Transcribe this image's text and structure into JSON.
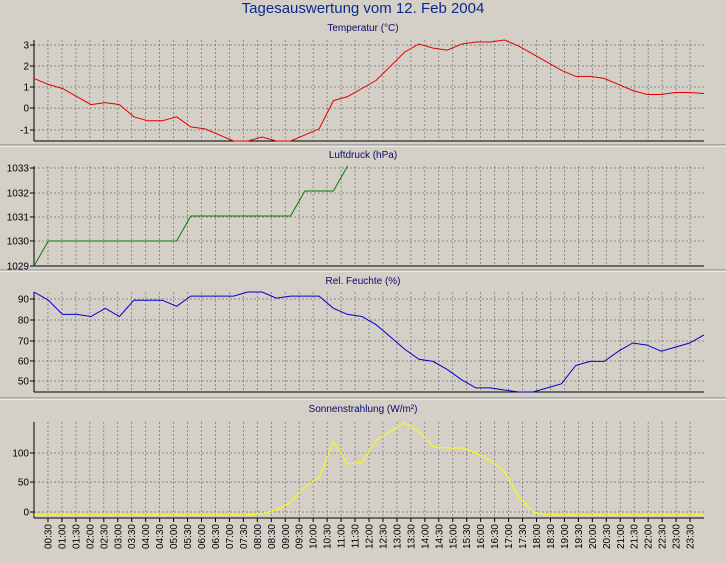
{
  "page_title": "Tagesauswertung vom 12. Feb 2004",
  "colors": {
    "temperature": "#e00000",
    "pressure": "#008000",
    "humidity": "#0000cc",
    "radiation": "#ffff00",
    "background": "#d4d0c8",
    "grid": "#707070"
  },
  "x_ticks": [
    "00:30",
    "01:00",
    "01:30",
    "02:00",
    "02:30",
    "03:00",
    "03:30",
    "04:00",
    "04:30",
    "05:00",
    "05:30",
    "06:00",
    "06:30",
    "07:00",
    "07:30",
    "08:00",
    "08:30",
    "09:00",
    "09:30",
    "10:00",
    "10:30",
    "11:00",
    "11:30",
    "12:00",
    "12:30",
    "13:00",
    "13:30",
    "14:00",
    "14:30",
    "15:00",
    "15:30",
    "16:00",
    "16:30",
    "17:00",
    "17:30",
    "18:00",
    "18:30",
    "19:00",
    "19:30",
    "20:00",
    "20:30",
    "21:00",
    "21:30",
    "22:00",
    "22:30",
    "23:00",
    "23:30"
  ],
  "chart_data": [
    {
      "type": "line",
      "title": "Temperatur (°C)",
      "ylim": [
        -1.7,
        3.3
      ],
      "yticks": [
        3,
        2,
        1,
        0,
        -1
      ],
      "grid": true,
      "values": [
        1.4,
        1.1,
        0.9,
        0.5,
        0.1,
        0.2,
        0.1,
        -0.5,
        -0.7,
        -0.7,
        -0.5,
        -1.0,
        -1.1,
        -1.4,
        -1.7,
        -1.7,
        -1.5,
        -1.7,
        -1.7,
        -1.4,
        -1.1,
        0.3,
        0.5,
        0.9,
        1.3,
        2.0,
        2.7,
        3.1,
        2.9,
        2.8,
        3.1,
        3.2,
        3.2,
        3.3,
        3.0,
        2.6,
        2.2,
        1.8,
        1.5,
        1.5,
        1.4,
        1.1,
        0.8,
        0.6,
        0.6,
        0.7,
        0.7,
        0.65
      ]
    },
    {
      "type": "line",
      "title": "Luftdruck (hPa)",
      "ylim": [
        1029,
        1033
      ],
      "yticks": [
        1033,
        1032,
        1031,
        1030,
        1029
      ],
      "grid": true,
      "values": [
        1029,
        1030,
        1030,
        1030,
        1030,
        1030,
        1030,
        1030,
        1030,
        1030,
        1030,
        1031,
        1031,
        1031,
        1031,
        1031,
        1031,
        1031,
        1031,
        1032,
        1032,
        1032,
        1033
      ]
    },
    {
      "type": "line",
      "title": "Rel. Feuchte (%)",
      "ylim": [
        44,
        93
      ],
      "yticks": [
        90,
        80,
        70,
        60,
        50
      ],
      "grid": true,
      "values": [
        93,
        89,
        82,
        82,
        81,
        85,
        81,
        89,
        89,
        89,
        86,
        91,
        91,
        91,
        91,
        93,
        93,
        90,
        91,
        91,
        91,
        85,
        82,
        81,
        77,
        71,
        65,
        60,
        59,
        55,
        50,
        46,
        46,
        45,
        44,
        44,
        46,
        48,
        57,
        59,
        59,
        64,
        68,
        67,
        64,
        66,
        68,
        72
      ]
    },
    {
      "type": "line",
      "title": "Sonnenstrahlung (W/m²)",
      "ylim": [
        -5,
        150
      ],
      "yticks": [
        100,
        50,
        0
      ],
      "grid": true,
      "values": [
        0,
        0,
        0,
        0,
        0,
        0,
        0,
        0,
        0,
        0,
        0,
        0,
        0,
        0,
        0,
        0,
        2,
        8,
        20,
        45,
        60,
        118,
        82,
        85,
        120,
        135,
        148,
        135,
        110,
        108,
        108,
        100,
        88,
        70,
        30,
        5,
        0,
        0,
        0,
        0,
        0,
        0,
        0,
        0,
        0,
        0,
        0,
        0
      ]
    }
  ]
}
